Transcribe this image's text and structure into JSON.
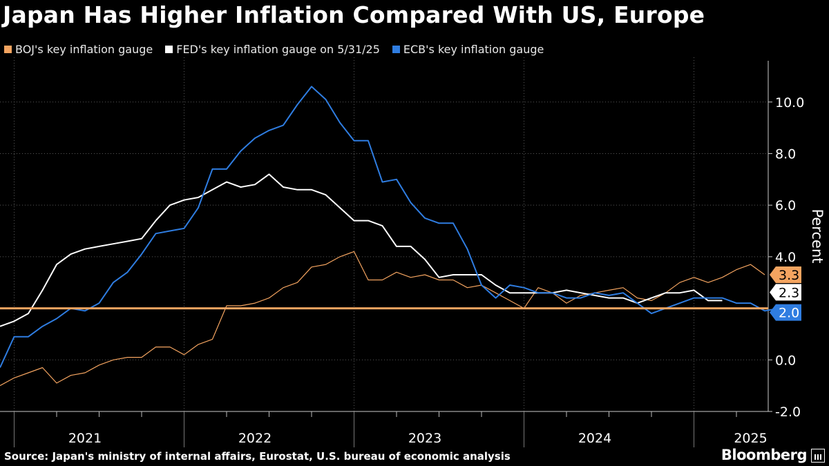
{
  "header": {
    "title": "Japan Has Higher Inflation Compared With US, Europe"
  },
  "legend": [
    {
      "label": "BOJ's key inflation gauge",
      "color": "#f4a460"
    },
    {
      "label": "FED's key inflation gauge on 5/31/25",
      "color": "#ffffff"
    },
    {
      "label": "ECB's key inflation gauge",
      "color": "#2f7de1"
    }
  ],
  "footer": {
    "source": "Source: Japan's ministry of internal affairs, Eurostat, U.S. bureau of economic analysis",
    "brand": "Bloomberg"
  },
  "chart_data": {
    "type": "line",
    "title": "Japan Has Higher Inflation Compared With US, Europe",
    "ylabel": "Percent",
    "ylim": [
      -2.0,
      11.6
    ],
    "yticks": [
      -2.0,
      0.0,
      4.0,
      6.0,
      8.0,
      10.0
    ],
    "ytick_labels": [
      "-2.0",
      "0.0",
      "4.0",
      "6.0",
      "8.0",
      "10.0"
    ],
    "x_start": "2020-12",
    "x_months": 54,
    "year_labels": [
      {
        "label": "2021",
        "month": 6
      },
      {
        "label": "2022",
        "month": 18
      },
      {
        "label": "2023",
        "month": 30
      },
      {
        "label": "2024",
        "month": 42
      },
      {
        "label": "2025",
        "month": 53
      }
    ],
    "reference_line": {
      "value": 2.0,
      "color": "#f4a460"
    },
    "end_labels": [
      {
        "text": "3.3",
        "value": 3.3,
        "color": "#f4a460",
        "text_color": "#000000"
      },
      {
        "text": "2.3",
        "value": 2.3,
        "color": "#ffffff",
        "text_color": "#000000"
      },
      {
        "text": "2.0",
        "value": 2.0,
        "color": "#2f7de1",
        "text_color": "#ffffff"
      }
    ],
    "series": [
      {
        "name": "BOJ's key inflation gauge",
        "color": "#f4a460",
        "width": 1.2,
        "start": 0,
        "values": [
          -1.0,
          -0.7,
          -0.5,
          -0.3,
          -0.9,
          -0.6,
          -0.5,
          -0.2,
          0.0,
          0.1,
          0.1,
          0.5,
          0.5,
          0.2,
          0.6,
          0.8,
          2.1,
          2.1,
          2.2,
          2.4,
          2.8,
          3.0,
          3.6,
          3.7,
          4.0,
          4.2,
          3.1,
          3.1,
          3.4,
          3.2,
          3.3,
          3.1,
          3.1,
          2.8,
          2.9,
          2.6,
          2.3,
          2.0,
          2.8,
          2.6,
          2.2,
          2.5,
          2.6,
          2.7,
          2.8,
          2.4,
          2.3,
          2.6,
          3.0,
          3.2,
          3.0,
          3.2,
          3.5,
          3.7,
          3.3
        ]
      },
      {
        "name": "FED's key inflation gauge on 5/31/25",
        "color": "#ffffff",
        "width": 2.0,
        "start": 0,
        "values": [
          1.3,
          1.5,
          1.8,
          2.7,
          3.7,
          4.1,
          4.3,
          4.4,
          4.5,
          4.6,
          4.7,
          5.4,
          6.0,
          6.2,
          6.3,
          6.6,
          6.9,
          6.7,
          6.8,
          7.2,
          6.7,
          6.6,
          6.6,
          6.4,
          5.9,
          5.4,
          5.4,
          5.2,
          4.4,
          4.4,
          3.9,
          3.2,
          3.3,
          3.3,
          3.3,
          2.9,
          2.6,
          2.6,
          2.6,
          2.6,
          2.7,
          2.6,
          2.5,
          2.4,
          2.4,
          2.2,
          2.4,
          2.6,
          2.6,
          2.7,
          2.3,
          2.3
        ]
      },
      {
        "name": "ECB's key inflation gauge",
        "color": "#2f7de1",
        "width": 2.0,
        "start": 0,
        "values": [
          -0.3,
          0.9,
          0.9,
          1.3,
          1.6,
          2.0,
          1.9,
          2.2,
          3.0,
          3.4,
          4.1,
          4.9,
          5.0,
          5.1,
          5.9,
          7.4,
          7.4,
          8.1,
          8.6,
          8.9,
          9.1,
          9.9,
          10.6,
          10.1,
          9.2,
          8.5,
          8.5,
          6.9,
          7.0,
          6.1,
          5.5,
          5.3,
          5.3,
          4.3,
          2.9,
          2.4,
          2.9,
          2.8,
          2.6,
          2.6,
          2.4,
          2.4,
          2.6,
          2.5,
          2.6,
          2.2,
          1.8,
          2.0,
          2.2,
          2.4,
          2.4,
          2.4,
          2.2,
          2.2,
          1.9,
          2.0
        ]
      }
    ]
  }
}
